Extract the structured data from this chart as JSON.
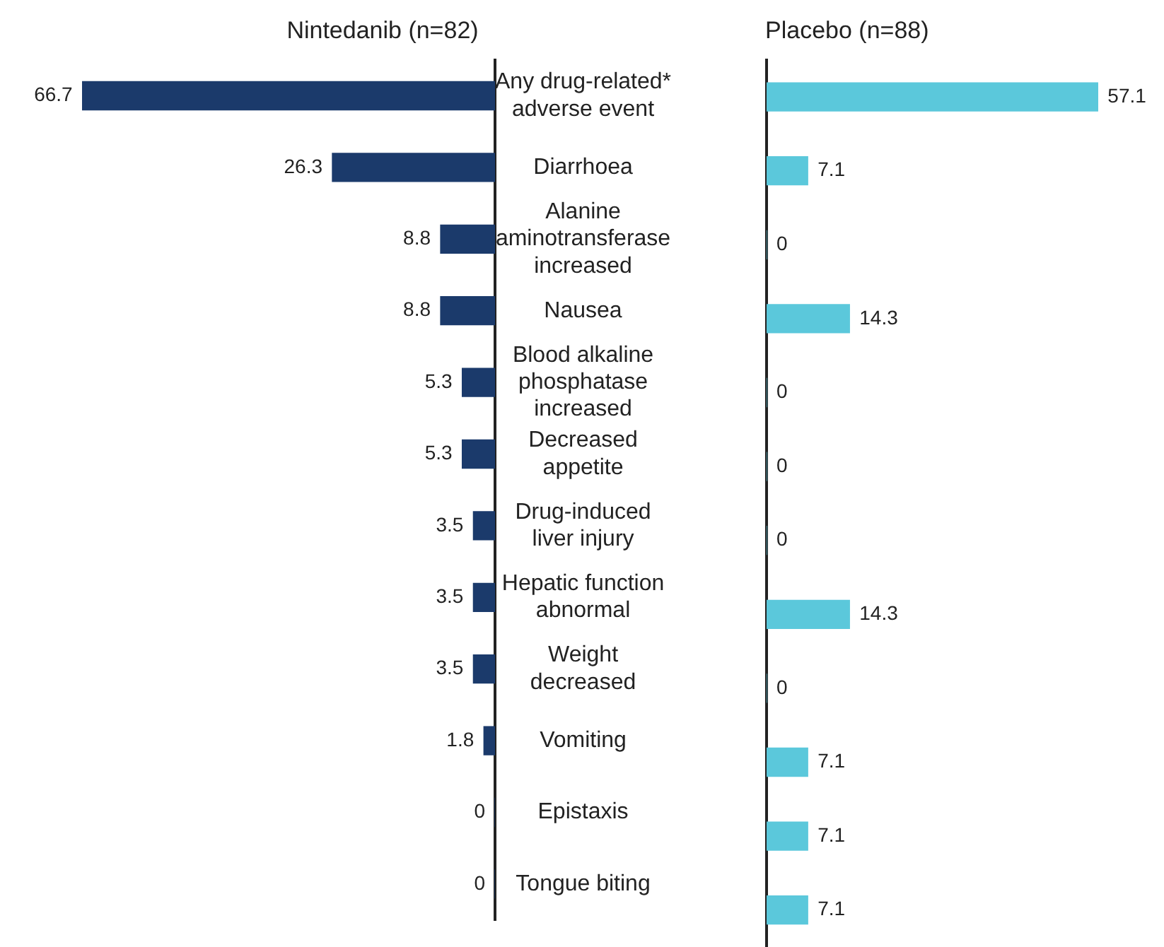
{
  "chart_data": [
    {
      "type": "bar",
      "orientation": "horizontal",
      "title": "Nintedanib (n=82)",
      "categories": [
        "Any drug-related* adverse event",
        "Diarrhoea",
        "Alanine aminotransferase increased",
        "Nausea",
        "Blood alkaline phosphatase increased",
        "Decreased appetite",
        "Drug-induced liver injury",
        "Hepatic function abnormal",
        "Weight decreased",
        "Vomiting",
        "Epistaxis",
        "Tongue biting"
      ],
      "values": [
        66.7,
        26.3,
        8.8,
        8.8,
        5.3,
        5.3,
        3.5,
        3.5,
        3.5,
        1.8,
        0,
        0
      ],
      "color": "#1b3a6b",
      "data_labels": true,
      "tick_labels": "y"
    },
    {
      "type": "bar",
      "orientation": "horizontal",
      "title": "Placebo (n=88)",
      "values": [
        57.1,
        7.1,
        0,
        14.3,
        0,
        0,
        0,
        14.3,
        0,
        7.1,
        7.1,
        7.1
      ],
      "color": "#5bc8db",
      "data_labels": true,
      "tick_labels": false
    }
  ]
}
